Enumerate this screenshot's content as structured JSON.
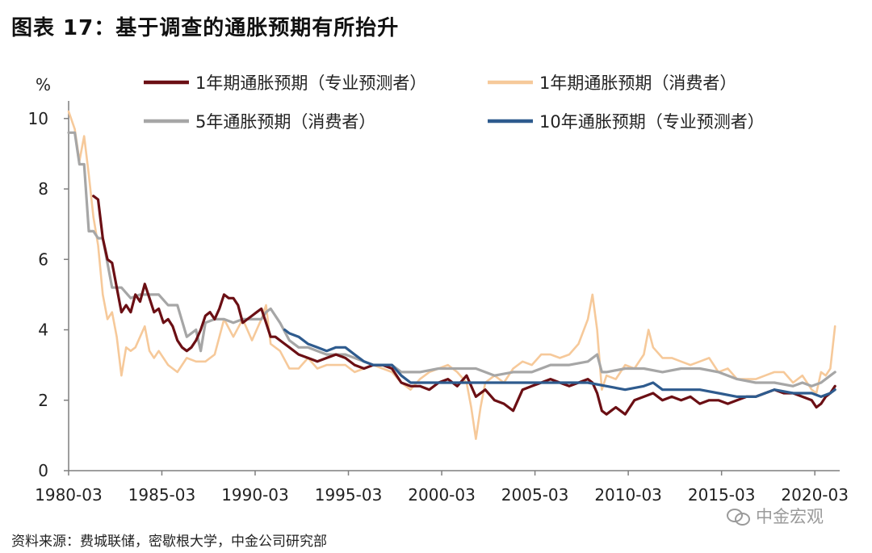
{
  "title": "图表 17：基于调查的通胀预期有所抬升",
  "source": "资料来源：费城联储，密歇根大学，中金公司研究部",
  "watermark": "中金宏观",
  "chart_data": {
    "type": "line",
    "ylabel": "%",
    "ylim": [
      0,
      10.5
    ],
    "yticks": [
      0,
      2,
      4,
      6,
      8,
      10
    ],
    "xlim": [
      1980.17,
      2021.5
    ],
    "xticks": [
      "1980-03",
      "1985-03",
      "1990-03",
      "1995-03",
      "2000-03",
      "2005-03",
      "2010-03",
      "2015-03",
      "2020-03"
    ],
    "grid": false,
    "legend_position": "top",
    "series": [
      {
        "name": "1年期通胀预期（专业预测者）",
        "color": "#6b0f14",
        "x": [
          1981.5,
          1981.75,
          1982,
          1982.25,
          1982.5,
          1982.75,
          1983,
          1983.25,
          1983.5,
          1983.75,
          1984,
          1984.25,
          1984.5,
          1984.75,
          1985,
          1985.25,
          1985.5,
          1985.75,
          1986,
          1986.25,
          1986.5,
          1986.75,
          1987,
          1987.25,
          1987.5,
          1987.75,
          1988,
          1988.25,
          1988.5,
          1988.75,
          1989,
          1989.25,
          1989.5,
          1989.75,
          1990,
          1990.25,
          1990.5,
          1990.75,
          1991,
          1991.25,
          1991.5,
          1991.75,
          1992,
          1992.5,
          1993,
          1993.5,
          1994,
          1994.5,
          1995,
          1995.5,
          1996,
          1996.5,
          1997,
          1997.5,
          1998,
          1998.5,
          1999,
          1999.5,
          2000,
          2000.5,
          2001,
          2001.5,
          2002,
          2002.5,
          2003,
          2003.5,
          2004,
          2004.5,
          2005,
          2005.5,
          2006,
          2006.5,
          2007,
          2007.5,
          2008,
          2008.25,
          2008.5,
          2008.75,
          2009,
          2009.25,
          2009.5,
          2010,
          2010.5,
          2011,
          2011.5,
          2012,
          2012.5,
          2013,
          2013.5,
          2014,
          2014.5,
          2015,
          2015.5,
          2016,
          2016.5,
          2017,
          2017.5,
          2018,
          2018.5,
          2019,
          2019.5,
          2020,
          2020.25,
          2020.5,
          2020.75,
          2021,
          2021.25
        ],
        "y": [
          7.8,
          7.7,
          6.6,
          6.0,
          5.9,
          5.2,
          4.5,
          4.7,
          4.5,
          5.0,
          4.8,
          5.3,
          4.9,
          4.5,
          4.6,
          4.2,
          4.3,
          4.1,
          3.7,
          3.5,
          3.4,
          3.5,
          3.7,
          4.0,
          4.4,
          4.5,
          4.3,
          4.6,
          5.0,
          4.9,
          4.9,
          4.7,
          4.2,
          4.3,
          4.4,
          4.5,
          4.6,
          4.2,
          3.8,
          3.8,
          3.7,
          3.6,
          3.5,
          3.3,
          3.2,
          3.1,
          3.2,
          3.3,
          3.2,
          3.0,
          2.9,
          3.0,
          3.0,
          2.9,
          2.5,
          2.4,
          2.4,
          2.3,
          2.5,
          2.6,
          2.4,
          2.7,
          2.1,
          2.3,
          2.0,
          1.9,
          1.7,
          2.3,
          2.4,
          2.5,
          2.6,
          2.5,
          2.4,
          2.5,
          2.6,
          2.5,
          2.2,
          1.7,
          1.6,
          1.7,
          1.8,
          1.6,
          2.0,
          2.1,
          2.2,
          2.0,
          2.1,
          2.0,
          2.1,
          1.9,
          2.0,
          2.0,
          1.9,
          2.0,
          2.1,
          2.1,
          2.2,
          2.3,
          2.2,
          2.2,
          2.1,
          2.0,
          1.8,
          1.9,
          2.1,
          2.2,
          2.4
        ]
      },
      {
        "name": "1年期通胀预期（消费者）",
        "color": "#f6c99a",
        "x": [
          1980.17,
          1980.5,
          1980.75,
          1981,
          1981.25,
          1981.5,
          1981.75,
          1982,
          1982.25,
          1982.5,
          1982.75,
          1983,
          1983.25,
          1983.5,
          1983.75,
          1984,
          1984.25,
          1984.5,
          1984.75,
          1985,
          1985.5,
          1986,
          1986.5,
          1987,
          1987.5,
          1988,
          1988.5,
          1989,
          1989.5,
          1990,
          1990.5,
          1990.75,
          1991,
          1991.5,
          1992,
          1992.5,
          1993,
          1993.5,
          1994,
          1994.5,
          1995,
          1995.5,
          1996,
          1996.5,
          1997,
          1997.5,
          1998,
          1998.5,
          1999,
          1999.5,
          2000,
          2000.5,
          2001,
          2001.5,
          2001.75,
          2002,
          2002.25,
          2002.5,
          2003,
          2003.5,
          2004,
          2004.5,
          2005,
          2005.5,
          2006,
          2006.5,
          2007,
          2007.5,
          2008,
          2008.25,
          2008.5,
          2008.75,
          2009,
          2009.5,
          2010,
          2010.5,
          2011,
          2011.25,
          2011.5,
          2012,
          2012.5,
          2013,
          2013.5,
          2014,
          2014.5,
          2015,
          2015.5,
          2016,
          2016.5,
          2017,
          2017.5,
          2018,
          2018.5,
          2019,
          2019.5,
          2020,
          2020.25,
          2020.5,
          2020.75,
          2021,
          2021.25
        ],
        "y": [
          10.2,
          9.7,
          8.8,
          9.5,
          8.4,
          7.2,
          6.4,
          5.0,
          4.3,
          4.5,
          3.8,
          2.7,
          3.5,
          3.4,
          3.5,
          3.8,
          4.1,
          3.4,
          3.2,
          3.4,
          3.0,
          2.8,
          3.2,
          3.1,
          3.1,
          3.3,
          4.3,
          3.8,
          4.3,
          3.7,
          4.3,
          4.7,
          3.6,
          3.4,
          2.9,
          2.9,
          3.2,
          2.9,
          3.0,
          3.0,
          3.0,
          2.8,
          2.9,
          3.0,
          2.9,
          2.8,
          2.5,
          2.3,
          2.6,
          2.8,
          2.9,
          3.0,
          2.8,
          2.5,
          1.8,
          0.9,
          1.8,
          2.5,
          2.7,
          2.5,
          2.9,
          3.1,
          3.0,
          3.3,
          3.3,
          3.2,
          3.3,
          3.6,
          4.3,
          5.0,
          4.0,
          2.3,
          2.7,
          2.6,
          3.0,
          2.9,
          3.3,
          4.0,
          3.5,
          3.2,
          3.2,
          3.1,
          3.0,
          3.1,
          3.2,
          2.8,
          2.9,
          2.6,
          2.6,
          2.6,
          2.7,
          2.8,
          2.8,
          2.5,
          2.7,
          2.3,
          2.2,
          2.8,
          2.7,
          2.9,
          4.1
        ]
      },
      {
        "name": "5年通胀预期（消费者）",
        "color": "#a6a6a6",
        "x": [
          1980.17,
          1980.5,
          1980.75,
          1981,
          1981.25,
          1981.5,
          1981.75,
          1982,
          1982.5,
          1983,
          1983.5,
          1984,
          1984.5,
          1985,
          1985.5,
          1986,
          1986.5,
          1987,
          1987.25,
          1987.5,
          1988,
          1988.5,
          1989,
          1989.5,
          1990,
          1990.5,
          1990.75,
          1991,
          1991.5,
          1992,
          1992.5,
          1993,
          1993.5,
          1994,
          1994.5,
          1995,
          1995.5,
          1996,
          1996.5,
          1997,
          1997.5,
          1998,
          1999,
          2000,
          2001,
          2002,
          2003,
          2004,
          2005,
          2006,
          2007,
          2008,
          2008.5,
          2008.75,
          2009,
          2010,
          2011,
          2012,
          2013,
          2014,
          2015,
          2016,
          2017,
          2018,
          2019,
          2019.5,
          2020,
          2020.5,
          2021,
          2021.25
        ],
        "y": [
          9.6,
          9.6,
          8.7,
          8.7,
          6.8,
          6.8,
          6.6,
          6.6,
          5.2,
          5.2,
          4.9,
          5.0,
          5.0,
          5.0,
          4.7,
          4.7,
          3.8,
          4.0,
          3.4,
          4.2,
          4.3,
          4.3,
          4.2,
          4.3,
          4.3,
          4.3,
          4.5,
          4.6,
          4.2,
          3.7,
          3.5,
          3.5,
          3.4,
          3.3,
          3.3,
          3.3,
          3.2,
          3.1,
          3.0,
          3.0,
          3.0,
          2.8,
          2.8,
          2.9,
          2.9,
          2.9,
          2.7,
          2.8,
          2.8,
          3.0,
          3.0,
          3.1,
          3.3,
          2.8,
          2.8,
          2.9,
          2.9,
          2.8,
          2.9,
          2.9,
          2.8,
          2.6,
          2.5,
          2.5,
          2.4,
          2.5,
          2.4,
          2.5,
          2.7,
          2.8
        ]
      },
      {
        "name": "10年通胀预期（专业预测者）",
        "color": "#2e5b8e",
        "x": [
          1991.75,
          1992,
          1992.5,
          1993,
          1993.5,
          1994,
          1994.5,
          1995,
          1995.5,
          1996,
          1996.5,
          1997,
          1997.5,
          1998,
          1998.5,
          1999,
          1999.5,
          2000,
          2001,
          2002,
          2003,
          2004,
          2005,
          2006,
          2007,
          2008,
          2009,
          2010,
          2011,
          2011.5,
          2012,
          2013,
          2014,
          2015,
          2016,
          2017,
          2017.5,
          2018,
          2019,
          2020,
          2020.5,
          2021,
          2021.25
        ],
        "y": [
          4.0,
          3.9,
          3.8,
          3.6,
          3.5,
          3.4,
          3.5,
          3.5,
          3.3,
          3.1,
          3.0,
          3.0,
          3.0,
          2.7,
          2.5,
          2.5,
          2.5,
          2.5,
          2.5,
          2.5,
          2.5,
          2.5,
          2.5,
          2.5,
          2.5,
          2.5,
          2.4,
          2.3,
          2.4,
          2.5,
          2.3,
          2.3,
          2.3,
          2.2,
          2.1,
          2.1,
          2.2,
          2.3,
          2.2,
          2.2,
          2.1,
          2.2,
          2.3
        ]
      }
    ]
  }
}
